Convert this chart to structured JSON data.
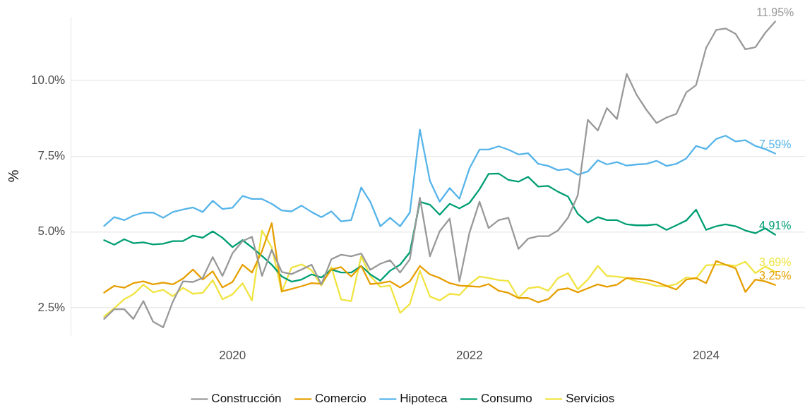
{
  "chart_data": {
    "type": "line",
    "ylabel": "%",
    "x": [
      "2018-12",
      "2019-01",
      "2019-02",
      "2019-03",
      "2019-04",
      "2019-05",
      "2019-06",
      "2019-07",
      "2019-08",
      "2019-09",
      "2019-10",
      "2019-11",
      "2019-12",
      "2020-01",
      "2020-02",
      "2020-03",
      "2020-04",
      "2020-05",
      "2020-06",
      "2020-07",
      "2020-08",
      "2020-09",
      "2020-10",
      "2020-11",
      "2020-12",
      "2021-01",
      "2021-02",
      "2021-03",
      "2021-04",
      "2021-05",
      "2021-06",
      "2021-07",
      "2021-08",
      "2021-09",
      "2021-10",
      "2021-11",
      "2021-12",
      "2022-01",
      "2022-02",
      "2022-03",
      "2022-04",
      "2022-05",
      "2022-06",
      "2022-07",
      "2022-08",
      "2022-09",
      "2022-10",
      "2022-11",
      "2022-12",
      "2023-01",
      "2023-02",
      "2023-03",
      "2023-04",
      "2023-05",
      "2023-06",
      "2023-07",
      "2023-08",
      "2023-09",
      "2023-10",
      "2023-11",
      "2023-12",
      "2024-01",
      "2024-02",
      "2024-03",
      "2024-04",
      "2024-05",
      "2024-06",
      "2024-07",
      "2024-08"
    ],
    "series": [
      {
        "name": "Construcción",
        "color": "#999999",
        "values": [
          2.13,
          2.45,
          2.45,
          2.13,
          2.72,
          2.04,
          1.85,
          2.7,
          3.37,
          3.35,
          3.48,
          4.17,
          3.55,
          4.3,
          4.7,
          4.84,
          3.55,
          4.41,
          3.68,
          3.61,
          3.76,
          3.92,
          3.27,
          4.1,
          4.25,
          4.2,
          4.29,
          3.75,
          3.95,
          4.07,
          3.66,
          4.1,
          6.13,
          4.2,
          5.02,
          5.44,
          3.37,
          4.98,
          6.0,
          5.13,
          5.39,
          5.47,
          4.44,
          4.78,
          4.86,
          4.86,
          5.05,
          5.47,
          6.21,
          8.7,
          8.35,
          9.09,
          8.73,
          10.22,
          9.52,
          9.03,
          8.6,
          8.78,
          8.9,
          9.61,
          9.85,
          11.08,
          11.67,
          11.72,
          11.54,
          11.03,
          11.1,
          11.57,
          11.95
        ]
      },
      {
        "name": "Comercio",
        "color": "#e69f00",
        "values": [
          3.0,
          3.22,
          3.16,
          3.31,
          3.37,
          3.27,
          3.33,
          3.27,
          3.46,
          3.76,
          3.43,
          3.7,
          3.17,
          3.35,
          3.92,
          3.66,
          4.37,
          5.29,
          3.04,
          3.12,
          3.21,
          3.31,
          3.29,
          3.76,
          3.84,
          3.53,
          3.88,
          3.28,
          3.31,
          3.37,
          3.17,
          3.37,
          3.88,
          3.6,
          3.48,
          3.31,
          3.23,
          3.21,
          3.19,
          3.28,
          3.06,
          2.99,
          2.82,
          2.82,
          2.68,
          2.78,
          3.09,
          3.14,
          3.01,
          3.14,
          3.27,
          3.19,
          3.26,
          3.48,
          3.46,
          3.43,
          3.35,
          3.22,
          3.1,
          3.43,
          3.48,
          3.31,
          4.04,
          3.92,
          3.8,
          3.02,
          3.43,
          3.37,
          3.25
        ]
      },
      {
        "name": "Hipoteca",
        "color": "#56b4e9",
        "values": [
          5.2,
          5.49,
          5.39,
          5.54,
          5.64,
          5.64,
          5.47,
          5.66,
          5.74,
          5.81,
          5.66,
          6.03,
          5.76,
          5.8,
          6.19,
          6.09,
          6.09,
          5.93,
          5.71,
          5.68,
          5.87,
          5.66,
          5.49,
          5.68,
          5.35,
          5.39,
          6.47,
          6.0,
          5.19,
          5.47,
          5.19,
          5.64,
          8.38,
          6.69,
          6.0,
          6.45,
          6.1,
          7.1,
          7.72,
          7.72,
          7.83,
          7.72,
          7.56,
          7.6,
          7.25,
          7.18,
          7.04,
          7.08,
          6.89,
          7.0,
          7.37,
          7.23,
          7.31,
          7.19,
          7.23,
          7.25,
          7.35,
          7.18,
          7.25,
          7.43,
          7.84,
          7.74,
          8.07,
          8.18,
          7.99,
          8.03,
          7.84,
          7.74,
          7.59
        ]
      },
      {
        "name": "Consumo",
        "color": "#009e73",
        "values": [
          4.73,
          4.58,
          4.76,
          4.63,
          4.66,
          4.59,
          4.61,
          4.7,
          4.7,
          4.88,
          4.81,
          5.02,
          4.81,
          4.5,
          4.73,
          4.49,
          4.21,
          3.92,
          3.53,
          3.36,
          3.43,
          3.6,
          3.5,
          3.76,
          3.66,
          3.66,
          3.88,
          3.6,
          3.39,
          3.72,
          3.92,
          4.33,
          6.0,
          5.9,
          5.57,
          5.93,
          5.78,
          5.96,
          6.41,
          6.92,
          6.93,
          6.72,
          6.66,
          6.82,
          6.5,
          6.52,
          6.33,
          6.17,
          5.6,
          5.31,
          5.49,
          5.39,
          5.39,
          5.25,
          5.22,
          5.22,
          5.25,
          5.07,
          5.22,
          5.38,
          5.74,
          5.07,
          5.19,
          5.25,
          5.19,
          5.05,
          4.96,
          5.12,
          4.91
        ]
      },
      {
        "name": "Servicios",
        "color": "#f0e442",
        "values": [
          2.21,
          2.48,
          2.78,
          2.94,
          3.26,
          3.01,
          3.09,
          2.88,
          3.16,
          2.96,
          2.99,
          3.41,
          2.78,
          2.94,
          3.31,
          2.74,
          5.05,
          4.49,
          3.02,
          3.82,
          3.93,
          3.74,
          3.23,
          3.84,
          2.77,
          2.72,
          4.2,
          3.55,
          3.19,
          3.23,
          2.33,
          2.62,
          3.72,
          2.87,
          2.74,
          2.96,
          2.92,
          3.27,
          3.53,
          3.48,
          3.41,
          3.38,
          2.82,
          3.14,
          3.19,
          3.06,
          3.48,
          3.64,
          3.11,
          3.43,
          3.88,
          3.55,
          3.53,
          3.48,
          3.37,
          3.31,
          3.22,
          3.21,
          3.28,
          3.5,
          3.46,
          3.9,
          3.92,
          3.92,
          3.88,
          4.02,
          3.64,
          3.86,
          3.69
        ]
      }
    ],
    "annotations": [
      {
        "text": "11.95%",
        "x": "2024-08",
        "y": 11.95
      },
      {
        "text": "3.25%",
        "x": "2024-08",
        "y": 3.25
      },
      {
        "text": "7.59%",
        "x": "2024-08",
        "y": 7.59
      },
      {
        "text": "4.91%",
        "x": "2024-08",
        "y": 4.91
      },
      {
        "text": "3.69%",
        "x": "2024-08",
        "y": 3.69
      }
    ],
    "xlim": [
      "2018-08-20",
      "2024-11-01"
    ],
    "ylim": [
      1.6,
      12.1
    ],
    "xticks": [
      "2020",
      "2022",
      "2024"
    ],
    "yticks": [
      {
        "value": 2.5,
        "label": "2.5%"
      },
      {
        "value": 5,
        "label": "5.0%"
      },
      {
        "value": 7.5,
        "label": "7.5%"
      },
      {
        "value": 10,
        "label": "10.0%"
      }
    ],
    "grid": "y",
    "legend": "bottom",
    "marker": "none",
    "line_style": "solid"
  }
}
